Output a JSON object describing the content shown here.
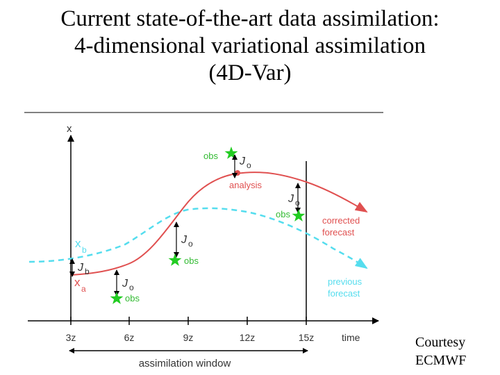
{
  "title": {
    "line1": "Current state-of-the-art data assimilation:",
    "line2": "4-dimensional variational assimilation",
    "line3": "(4D-Var)"
  },
  "diagram": {
    "y_axis_label": "x",
    "x_axis_label": "time",
    "ticks": [
      "3z",
      "6z",
      "9z",
      "12z",
      "15z"
    ],
    "window_label": "assimilation window",
    "xb_label": "x",
    "xb_sub": "b",
    "xa_label": "x",
    "xa_sub": "a",
    "analysis_label": "analysis",
    "corrected_line1": "corrected",
    "corrected_line2": "forecast",
    "previous_line1": "previous",
    "previous_line2": "forecast",
    "obs_label": "obs",
    "jb_label": "J",
    "jb_sub": "b",
    "jo_label": "J",
    "jo_sub": "o",
    "colors": {
      "analysis_curve": "#e05050",
      "background_curve": "#55ddee",
      "obs_star": "#22cc22",
      "obs_text": "#33bb33",
      "axis": "#000000",
      "label_gray": "#333333"
    }
  },
  "courtesy": {
    "line1": "Courtesy",
    "line2": "ECMWF"
  }
}
